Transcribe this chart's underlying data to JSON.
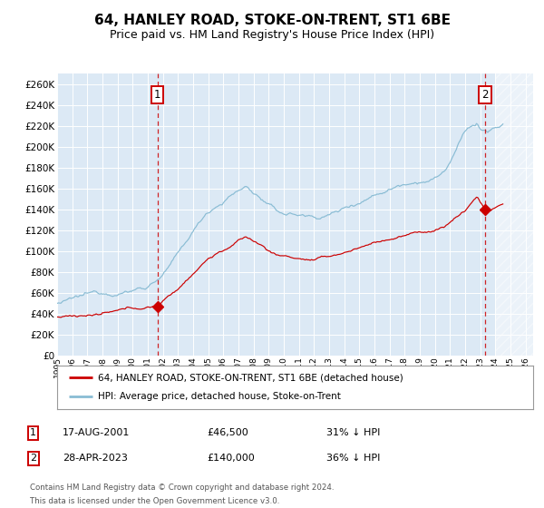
{
  "title": "64, HANLEY ROAD, STOKE-ON-TRENT, ST1 6BE",
  "subtitle": "Price paid vs. HM Land Registry's House Price Index (HPI)",
  "ylim": [
    0,
    270000
  ],
  "yticks": [
    0,
    20000,
    40000,
    60000,
    80000,
    100000,
    120000,
    140000,
    160000,
    180000,
    200000,
    220000,
    240000,
    260000
  ],
  "background_color": "#dce9f5",
  "grid_color": "#ffffff",
  "hpi_color": "#89bcd4",
  "price_color": "#cc0000",
  "marker_color": "#cc0000",
  "vline_color": "#cc0000",
  "sale1_date_num": 2001.63,
  "sale1_price": 46500,
  "sale2_date_num": 2023.33,
  "sale2_price": 140000,
  "legend_property": "64, HANLEY ROAD, STOKE-ON-TRENT, ST1 6BE (detached house)",
  "legend_hpi": "HPI: Average price, detached house, Stoke-on-Trent",
  "table_row1": [
    "1",
    "17-AUG-2001",
    "£46,500",
    "31% ↓ HPI"
  ],
  "table_row2": [
    "2",
    "28-APR-2023",
    "£140,000",
    "36% ↓ HPI"
  ],
  "footnote1": "Contains HM Land Registry data © Crown copyright and database right 2024.",
  "footnote2": "This data is licensed under the Open Government Licence v3.0.",
  "xmin": 1995.0,
  "xmax": 2026.5,
  "hatch_start": 2024.0,
  "title_fontsize": 11,
  "subtitle_fontsize": 9
}
